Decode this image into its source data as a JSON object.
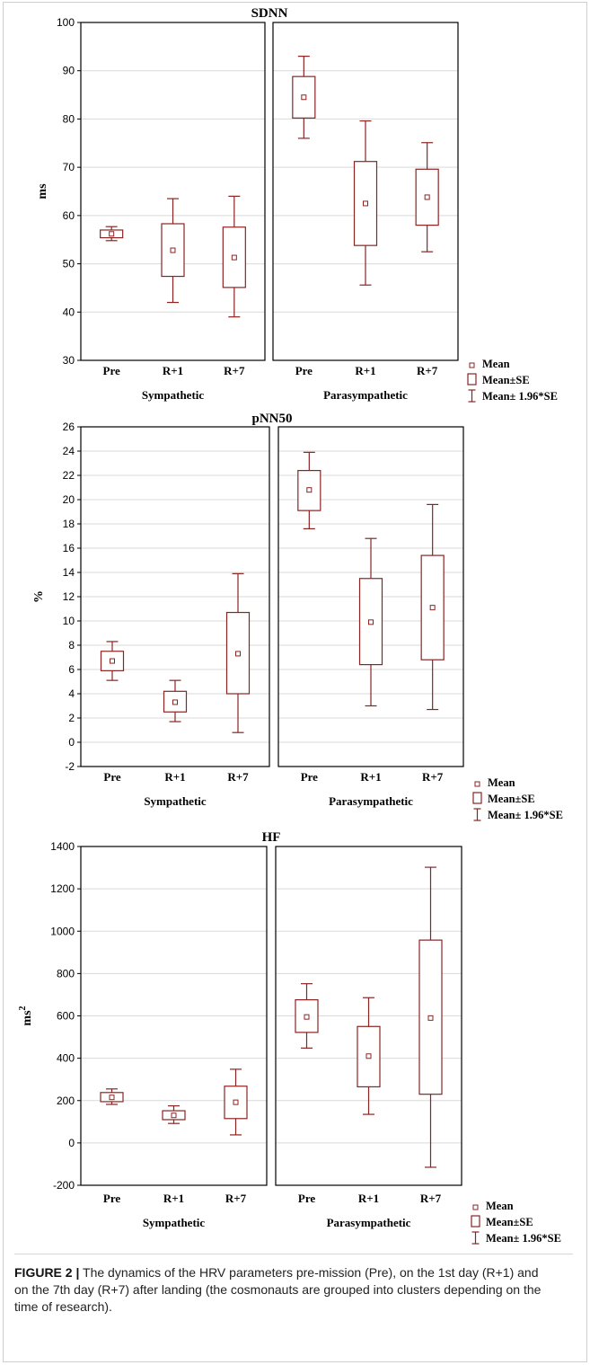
{
  "colors": {
    "box": "#8b2323",
    "grid": "#d9d9d9",
    "axis": "#000000"
  },
  "legend": {
    "mean": "Mean",
    "mean_se": "Mean±SE",
    "mean_ci": "Mean± 1.96*SE"
  },
  "groups": [
    "Sympathetic",
    "Parasympathetic"
  ],
  "caption": {
    "label": "FIGURE 2 |",
    "text": "The dynamics of the HRV parameters pre-mission (Pre), on the 1st day (R+1) and on the 7th day (R+7) after landing (the cosmonauts are grouped into clusters depending on the time of research)."
  },
  "chart_data": [
    {
      "type": "box",
      "title": "SDNN",
      "ylabel": "ms",
      "ylim": [
        30,
        100
      ],
      "yticks": [
        "30",
        "40",
        "50",
        "60",
        "70",
        "80",
        "90",
        "100"
      ],
      "categories": [
        "Pre",
        "R+1",
        "R+7"
      ],
      "series": [
        {
          "name": "Sympathetic",
          "mean": [
            56.2,
            52.8,
            51.3
          ],
          "se_low": [
            55.4,
            47.4,
            45.1
          ],
          "se_high": [
            57.0,
            58.3,
            57.6
          ],
          "ci_low": [
            54.8,
            42.0,
            39.0
          ],
          "ci_high": [
            57.7,
            63.5,
            64.0
          ]
        },
        {
          "name": "Parasympathetic",
          "mean": [
            84.5,
            62.5,
            63.8
          ],
          "se_low": [
            80.2,
            53.8,
            58.0
          ],
          "se_high": [
            88.8,
            71.2,
            69.6
          ],
          "ci_low": [
            76.0,
            45.6,
            52.5
          ],
          "ci_high": [
            93.0,
            79.6,
            75.1
          ]
        }
      ]
    },
    {
      "type": "box",
      "title": "pNN50",
      "ylabel": "%",
      "ylim": [
        -2,
        26
      ],
      "yticks": [
        "-2",
        "0",
        "2",
        "4",
        "6",
        "8",
        "10",
        "12",
        "14",
        "16",
        "18",
        "20",
        "22",
        "24",
        "26"
      ],
      "categories": [
        "Pre",
        "R+1",
        "R+7"
      ],
      "series": [
        {
          "name": "Sympathetic",
          "mean": [
            6.7,
            3.3,
            7.3
          ],
          "se_low": [
            5.9,
            2.5,
            4.0
          ],
          "se_high": [
            7.5,
            4.2,
            10.7
          ],
          "ci_low": [
            5.1,
            1.7,
            0.8
          ],
          "ci_high": [
            8.3,
            5.1,
            13.9
          ]
        },
        {
          "name": "Parasympathetic",
          "mean": [
            20.8,
            9.9,
            11.1
          ],
          "se_low": [
            19.1,
            6.4,
            6.8
          ],
          "se_high": [
            22.4,
            13.5,
            15.4
          ],
          "ci_low": [
            17.6,
            3.0,
            2.7
          ],
          "ci_high": [
            23.9,
            16.8,
            19.6
          ]
        }
      ]
    },
    {
      "type": "box",
      "title": "HF",
      "ylabel": "ms",
      "ylabel_sup": "2",
      "ylim": [
        -200,
        1400
      ],
      "yticks": [
        "-200",
        "0",
        "200",
        "400",
        "600",
        "800",
        "1000",
        "1200",
        "1400"
      ],
      "categories": [
        "Pre",
        "R+1",
        "R+7"
      ],
      "series": [
        {
          "name": "Sympathetic",
          "mean": [
            215,
            130,
            192
          ],
          "se_low": [
            195,
            110,
            115
          ],
          "se_high": [
            238,
            152,
            268
          ],
          "ci_low": [
            182,
            92,
            38
          ],
          "ci_high": [
            255,
            175,
            348
          ]
        },
        {
          "name": "Parasympathetic",
          "mean": [
            595,
            410,
            590
          ],
          "se_low": [
            522,
            265,
            230
          ],
          "se_high": [
            676,
            550,
            958
          ],
          "ci_low": [
            448,
            135,
            -115
          ],
          "ci_high": [
            752,
            686,
            1302
          ]
        }
      ]
    }
  ]
}
